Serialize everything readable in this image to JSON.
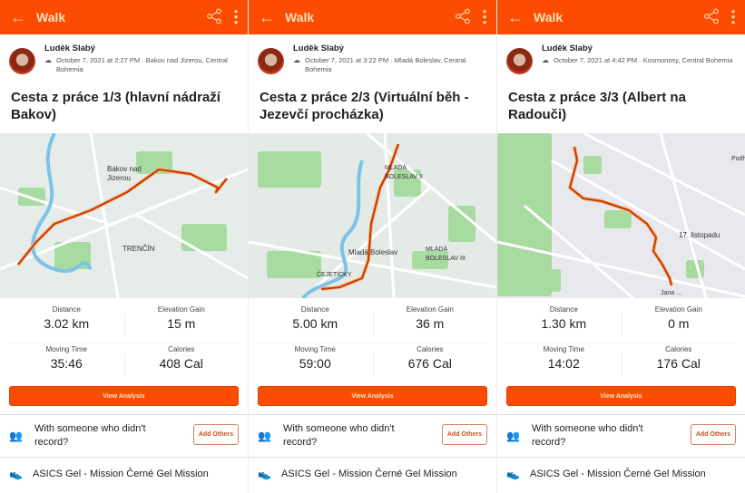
{
  "colors": {
    "brand": "#fc4c02",
    "route": "#c33a06"
  },
  "topbar": {
    "title": "Walk",
    "back_icon": "arrow-left-icon",
    "share_icon": "share-icon",
    "more_icon": "more-vertical-icon"
  },
  "labels": {
    "distance": "Distance",
    "elevation": "Elevation Gain",
    "moving_time": "Moving Time",
    "calories": "Calories",
    "view_analysis": "View Analysis",
    "with_someone": "With someone who didn't record?",
    "add_others": "Add Others"
  },
  "panels": [
    {
      "athlete": "Luděk Slabý",
      "meta": "October 7, 2021 at 2:27 PM · Bakov nad Jizerou, Central Bohemia",
      "title": "Cesta z práce 1/3 (hlavní nádraží Bakov)",
      "map_labels": [
        "Bakov nad",
        "Jizerou",
        "TRENČÍN"
      ],
      "distance": "3.02 km",
      "elevation": "15 m",
      "moving_time": "35:46",
      "calories": "408 Cal",
      "gear": "ASICS Gel - Mission Černé Gel Mission"
    },
    {
      "athlete": "Luděk Slabý",
      "meta": "October 7, 2021 at 3:22 PM · Mladá Boleslav, Central Bohemia",
      "title": "Cesta z práce 2/3 (Virtuální běh - Jezevčí procházka)",
      "map_labels": [
        "MLADÁ",
        "BOLESLAV II",
        "Mladá Boleslav",
        "MLADÁ",
        "BOLESLAV III",
        "ČEJETICKY"
      ],
      "distance": "5.00 km",
      "elevation": "36 m",
      "moving_time": "59:00",
      "calories": "676 Cal",
      "gear": "ASICS Gel - Mission Černé Gel Mission"
    },
    {
      "athlete": "Luděk Slabý",
      "meta": "October 7, 2021 at 4:42 PM · Kosmonosy, Central Bohemia",
      "title": "Cesta z práce 3/3 (Albert na Radouči)",
      "map_labels": [
        "17. listopadu",
        "Jana ...",
        "Podh..."
      ],
      "distance": "1.30 km",
      "elevation": "0 m",
      "moving_time": "14:02",
      "calories": "176 Cal",
      "gear": "ASICS Gel - Mission Černé Gel Mission"
    }
  ]
}
